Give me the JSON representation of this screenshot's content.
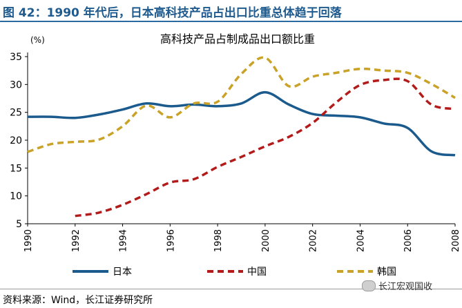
{
  "figure_title": "图 42：1990 年代后，日本高科技产品占出口比重总体趋于回落",
  "source": "资料来源：Wind，长江证券研究所",
  "watermark": "长江宏观国收",
  "colors": {
    "title": "#1f5b8e",
    "japan": "#1a5a8c",
    "china": "#b31b1b",
    "korea": "#c9a227"
  },
  "chart_data": {
    "type": "line",
    "title": "高科技产品占制成品出口额比重",
    "ylabel": "(%)",
    "xlabel": "",
    "xlim": [
      1990,
      2008
    ],
    "ylim": [
      5,
      35
    ],
    "x_ticks": [
      "1990",
      "1992",
      "1994",
      "1996",
      "1998",
      "2000",
      "2002",
      "2004",
      "2006",
      "2008"
    ],
    "y_ticks": [
      "5",
      "10",
      "15",
      "20",
      "25",
      "30",
      "35"
    ],
    "grid": false,
    "legend_position": "bottom",
    "series": [
      {
        "name": "日本",
        "style": "solid",
        "x": [
          1990,
          1991,
          1992,
          1993,
          1994,
          1995,
          1996,
          1997,
          1998,
          1999,
          2000,
          2001,
          2002,
          2003,
          2004,
          2005,
          2006,
          2007,
          2008
        ],
        "y": [
          24.2,
          24.2,
          24.0,
          24.6,
          25.5,
          26.6,
          26.1,
          26.4,
          26.1,
          26.6,
          28.6,
          26.4,
          24.7,
          24.4,
          24.1,
          23.0,
          22.2,
          18.0,
          17.3
        ]
      },
      {
        "name": "中国",
        "style": "dashed",
        "x": [
          1992,
          1993,
          1994,
          1995,
          1996,
          1997,
          1998,
          1999,
          2000,
          2001,
          2002,
          2003,
          2004,
          2005,
          2006,
          2007,
          2008
        ],
        "y": [
          6.4,
          7.0,
          8.4,
          10.3,
          12.4,
          13.0,
          15.2,
          17.0,
          18.9,
          20.6,
          23.1,
          26.8,
          29.9,
          30.8,
          30.6,
          26.4,
          25.6
        ]
      },
      {
        "name": "韩国",
        "style": "dashed",
        "x": [
          1990,
          1991,
          1992,
          1993,
          1994,
          1995,
          1996,
          1997,
          1998,
          1999,
          2000,
          2001,
          2002,
          2003,
          2004,
          2005,
          2006,
          2007,
          2008
        ],
        "y": [
          17.9,
          19.3,
          19.7,
          20.1,
          22.5,
          26.2,
          24.1,
          26.6,
          26.9,
          31.9,
          34.8,
          29.7,
          31.4,
          32.1,
          32.8,
          32.5,
          32.1,
          30.1,
          27.6
        ]
      }
    ]
  }
}
